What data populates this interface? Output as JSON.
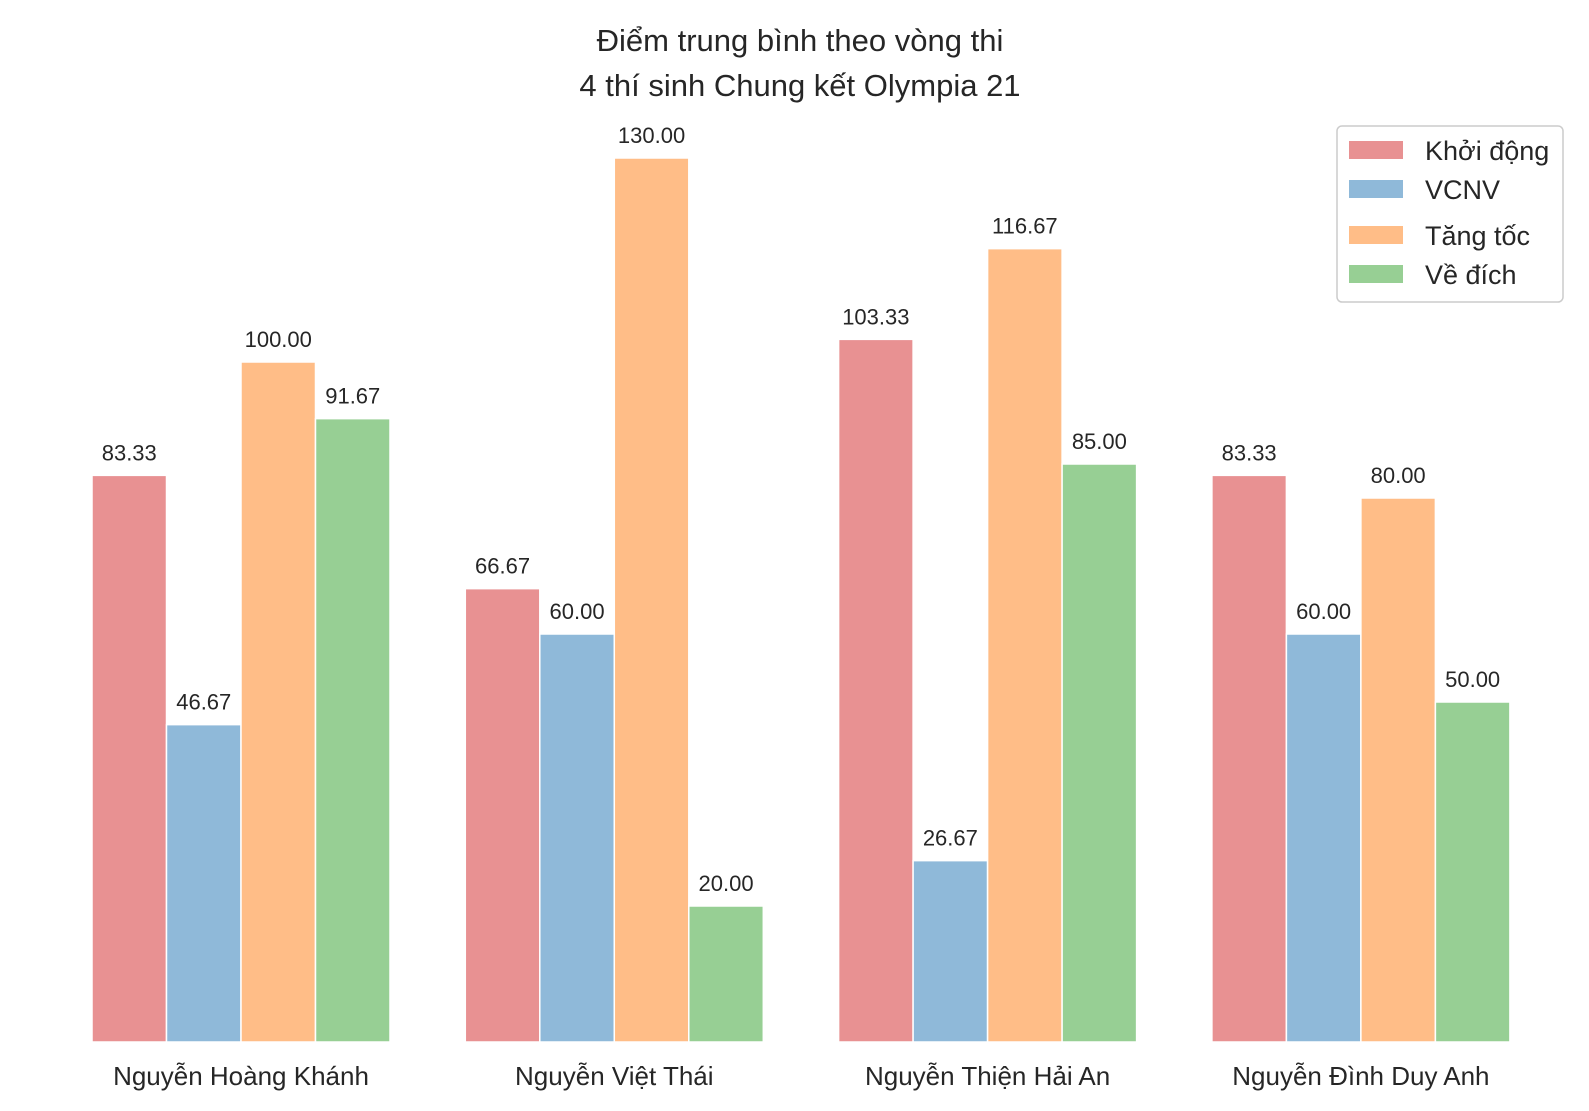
{
  "chart_data": {
    "type": "bar",
    "title": "Điểm trung bình theo vòng thi\n4 thí sinh Chung kết Olympia 21",
    "title_lines": [
      "Điểm trung bình theo vòng thi",
      "4 thí sinh Chung kết Olympia 21"
    ],
    "xlabel": "",
    "ylabel": "",
    "categories": [
      "Nguyễn Hoàng Khánh",
      "Nguyễn Việt Thái",
      "Nguyễn Thiện Hải An",
      "Nguyễn Đình Duy Anh"
    ],
    "series": [
      {
        "name": "Khởi động",
        "color": "#e89192",
        "values": [
          83.33,
          66.67,
          103.33,
          83.33
        ],
        "labels": [
          "83.33",
          "66.67",
          "103.33",
          "83.33"
        ]
      },
      {
        "name": "VCNV",
        "color": "#8fb9d9",
        "values": [
          46.67,
          60.0,
          26.67,
          60.0
        ],
        "labels": [
          "46.67",
          "60.00",
          "26.67",
          "60.00"
        ]
      },
      {
        "name": "Tăng tốc",
        "color": "#ffbd87",
        "values": [
          100.0,
          130.0,
          116.67,
          80.0
        ],
        "labels": [
          "100.00",
          "130.00",
          "116.67",
          "80.00"
        ]
      },
      {
        "name": "Về đích",
        "color": "#97cf94",
        "values": [
          91.67,
          20.0,
          85.0,
          50.0
        ],
        "labels": [
          "91.67",
          "20.00",
          "85.00",
          "50.00"
        ]
      }
    ],
    "ylim": [
      0,
      130
    ],
    "grid": false,
    "legend_position": "top-right",
    "y_axis_visible": false
  }
}
